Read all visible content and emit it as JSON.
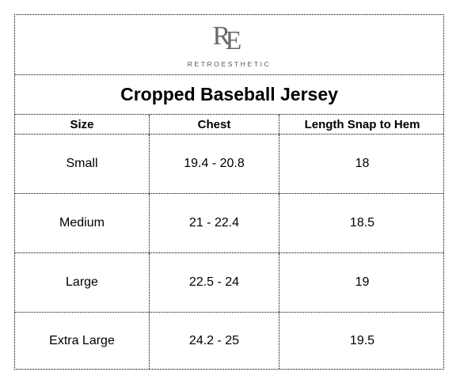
{
  "brand": {
    "monogram_left": "R",
    "monogram_right": "E",
    "name": "RETROESTHETIC"
  },
  "title": "Cropped Baseball Jersey",
  "columns": [
    "Size",
    "Chest",
    "Length Snap to Hem"
  ],
  "rows": [
    [
      "Small",
      "19.4 - 20.8",
      "18"
    ],
    [
      "Medium",
      "21 - 22.4",
      "18.5"
    ],
    [
      "Large",
      "22.5 - 24",
      "19"
    ],
    [
      "Extra Large",
      "24.2 - 25",
      "19.5"
    ]
  ]
}
